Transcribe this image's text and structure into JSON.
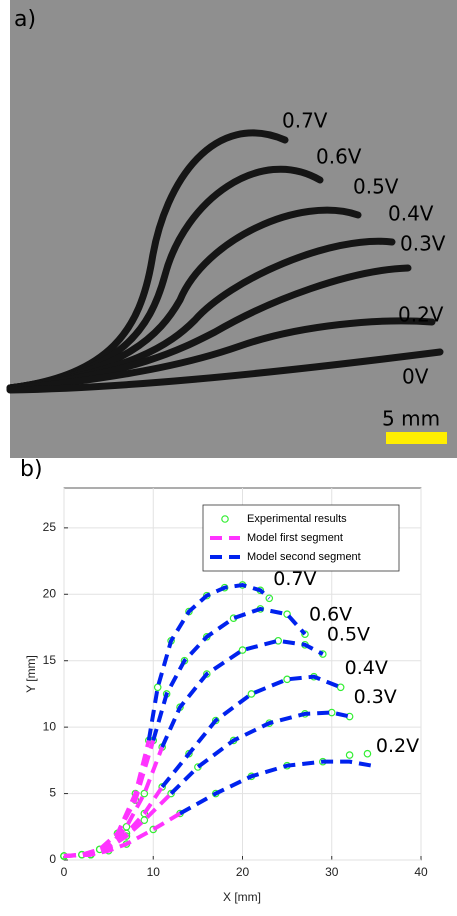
{
  "panels": {
    "a": "a)",
    "b": "b)"
  },
  "photo": {
    "labels": [
      "0.7V",
      "0.6V",
      "0.5V",
      "0.4V",
      "0.3V",
      "0.2V",
      "0V"
    ],
    "scale_label": "5 mm"
  },
  "chart_data": {
    "type": "curves",
    "x_label": "X [mm]",
    "y_label": "Y [mm]",
    "xlim": [
      0,
      40
    ],
    "ylim": [
      0,
      28
    ],
    "xticks": [
      0,
      10,
      20,
      30,
      40
    ],
    "yticks": [
      0,
      5,
      10,
      15,
      20,
      25
    ],
    "grid": true,
    "legend": "top-right",
    "curve_labels": [
      "0.7V",
      "0.6V",
      "0.5V",
      "0.4V",
      "0.3V",
      "0.2V"
    ],
    "series": [
      {
        "name": "Experimental results",
        "color": "#33ee33",
        "style": "circle",
        "curves": [
          {
            "x": [
              0,
              2,
              4,
              6,
              8,
              9.5,
              10.5,
              12,
              14,
              16,
              18,
              20,
              22,
              23
            ],
            "y": [
              0.3,
              0.4,
              0.8,
              2,
              5,
              9,
              13,
              16.5,
              18.7,
              19.9,
              20.5,
              20.7,
              20.3,
              19.7
            ]
          },
          {
            "x": [
              0,
              2,
              4,
              6,
              8,
              10,
              11.5,
              13.5,
              16,
              19,
              22,
              25,
              27
            ],
            "y": [
              0.3,
              0.4,
              0.8,
              2,
              4.5,
              9,
              12.5,
              15,
              16.8,
              18.2,
              18.9,
              18.5,
              17
            ]
          },
          {
            "x": [
              0,
              3,
              5,
              7,
              9,
              11,
              13,
              16,
              20,
              24,
              27,
              29
            ],
            "y": [
              0.3,
              0.4,
              1,
              2.5,
              5,
              8.5,
              11.5,
              14,
              15.8,
              16.5,
              16.2,
              15.5
            ]
          },
          {
            "x": [
              0,
              3,
              5,
              7,
              9,
              11,
              14,
              17,
              21,
              25,
              28,
              31
            ],
            "y": [
              0.3,
              0.4,
              1,
              2,
              3.5,
              5.5,
              8,
              10.5,
              12.5,
              13.6,
              13.8,
              13
            ]
          },
          {
            "x": [
              0,
              3,
              5,
              7,
              9,
              12,
              15,
              19,
              23,
              27,
              30,
              32
            ],
            "y": [
              0.3,
              0.4,
              0.9,
              1.8,
              3,
              5,
              7,
              9,
              10.3,
              11,
              11.1,
              10.8
            ]
          },
          {
            "x": [
              0,
              3,
              5,
              7,
              10,
              13,
              17,
              21,
              25,
              29,
              32,
              34
            ],
            "y": [
              0.3,
              0.4,
              0.7,
              1.2,
              2.3,
              3.5,
              5,
              6.3,
              7.1,
              7.4,
              7.9,
              8
            ]
          }
        ]
      },
      {
        "name": "Model first segment",
        "color": "#ff33ff",
        "style": "dash",
        "curves": [
          {
            "x": [
              0,
              2,
              4,
              6,
              8,
              9.5
            ],
            "y": [
              0.3,
              0.4,
              0.8,
              2,
              5,
              9
            ]
          },
          {
            "x": [
              0,
              2,
              4,
              6,
              8,
              10
            ],
            "y": [
              0.3,
              0.4,
              0.8,
              2,
              4.5,
              9
            ]
          },
          {
            "x": [
              0,
              3,
              5,
              7,
              9,
              11
            ],
            "y": [
              0.3,
              0.4,
              1,
              2.5,
              5,
              8.5
            ]
          },
          {
            "x": [
              0,
              3,
              5,
              7,
              9,
              11
            ],
            "y": [
              0.3,
              0.4,
              1,
              2,
              3.5,
              5.5
            ]
          },
          {
            "x": [
              0,
              3,
              5,
              7,
              9,
              12
            ],
            "y": [
              0.3,
              0.4,
              0.9,
              1.8,
              3,
              5
            ]
          },
          {
            "x": [
              0,
              3,
              5,
              7,
              10,
              13
            ],
            "y": [
              0.3,
              0.4,
              0.7,
              1.2,
              2.3,
              3.5
            ]
          }
        ]
      },
      {
        "name": "Model second segment",
        "color": "#0022ee",
        "style": "dash",
        "curves": [
          {
            "x": [
              9.5,
              10.5,
              12,
              14,
              16,
              18,
              20,
              22,
              23
            ],
            "y": [
              9,
              13,
              16.5,
              18.7,
              19.9,
              20.5,
              20.7,
              20.3,
              19.7
            ]
          },
          {
            "x": [
              10,
              11.5,
              13.5,
              16,
              19,
              22,
              25,
              27
            ],
            "y": [
              9,
              12.5,
              15,
              16.8,
              18.2,
              18.9,
              18.5,
              17
            ]
          },
          {
            "x": [
              11,
              13,
              16,
              20,
              24,
              27,
              29
            ],
            "y": [
              8.5,
              11.5,
              14,
              15.8,
              16.5,
              16.2,
              15.5
            ]
          },
          {
            "x": [
              11,
              14,
              17,
              21,
              25,
              28,
              31
            ],
            "y": [
              5.5,
              8,
              10.5,
              12.5,
              13.6,
              13.8,
              13
            ]
          },
          {
            "x": [
              12,
              15,
              19,
              23,
              27,
              30,
              32
            ],
            "y": [
              5,
              7,
              9,
              10.3,
              11,
              11.1,
              10.8
            ]
          },
          {
            "x": [
              13,
              17,
              21,
              25,
              29,
              32,
              34.5
            ],
            "y": [
              3.5,
              5,
              6.3,
              7.1,
              7.4,
              7.4,
              7.1
            ]
          }
        ]
      }
    ]
  }
}
